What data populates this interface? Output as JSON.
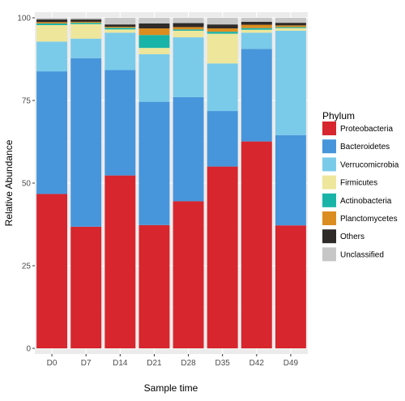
{
  "chart_data": {
    "type": "bar",
    "stacked": true,
    "title": "",
    "xlabel": "Sample time",
    "ylabel": "Relative Abundance",
    "ylim": [
      0,
      100
    ],
    "yticks": [
      "0",
      "25",
      "50",
      "75",
      "100"
    ],
    "categories": [
      "D0",
      "D7",
      "D14",
      "D21",
      "D28",
      "D35",
      "D42",
      "D49"
    ],
    "grid": true,
    "legend_position": "right",
    "legend_title": "Phylum",
    "series": [
      {
        "name": "Proteobacteria",
        "color": "#d7262e",
        "values": [
          46.7,
          36.8,
          52.3,
          37.3,
          44.5,
          55.0,
          62.6,
          37.2
        ]
      },
      {
        "name": "Bacteroidetes",
        "color": "#4796db",
        "values": [
          37.1,
          51.0,
          31.9,
          37.3,
          31.5,
          16.8,
          28.0,
          27.3
        ]
      },
      {
        "name": "Verrucomicrobia",
        "color": "#7acbea",
        "values": [
          9.0,
          5.9,
          11.3,
          14.4,
          18.1,
          14.4,
          4.9,
          31.6
        ]
      },
      {
        "name": "Firmicutes",
        "color": "#ede69b",
        "values": [
          5.0,
          4.4,
          1.0,
          1.9,
          2.0,
          9.0,
          0.9,
          0.8
        ]
      },
      {
        "name": "Actinobacteria",
        "color": "#19b4a8",
        "values": [
          0.5,
          0.4,
          0.5,
          3.9,
          0.4,
          0.6,
          0.5,
          0.3
        ]
      },
      {
        "name": "Planctomycetes",
        "color": "#dc8d1f",
        "values": [
          0.4,
          0.3,
          0.3,
          2.0,
          0.7,
          1.0,
          1.0,
          0.5
        ]
      },
      {
        "name": "Others",
        "color": "#2e2b28",
        "values": [
          0.8,
          0.7,
          0.7,
          1.5,
          1.2,
          1.2,
          0.9,
          0.8
        ]
      },
      {
        "name": "Unclassified",
        "color": "#c7c7c7",
        "values": [
          0.5,
          0.5,
          2.0,
          1.7,
          1.6,
          2.0,
          1.2,
          1.5
        ]
      }
    ]
  }
}
